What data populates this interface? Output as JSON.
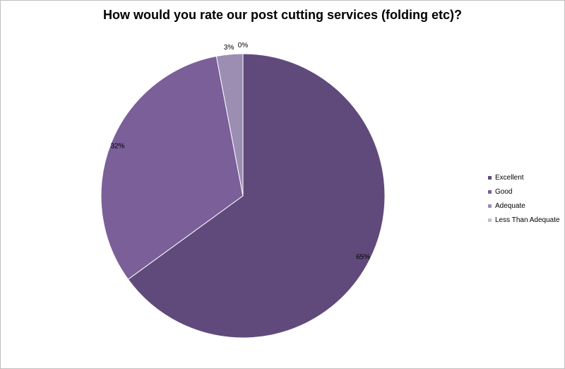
{
  "chart_data": {
    "type": "pie",
    "title": "How would you rate our post cutting services (folding etc)?",
    "categories": [
      "Excellent",
      "Good",
      "Adequate",
      "Less Than Adequate"
    ],
    "values": [
      65,
      32,
      3,
      0
    ],
    "value_labels": [
      "65%",
      "32%",
      "3%",
      "0%"
    ],
    "colors": [
      "#604a7b",
      "#7a5f99",
      "#9c8db3",
      "#c4bdd1"
    ],
    "legend_position": "right"
  }
}
